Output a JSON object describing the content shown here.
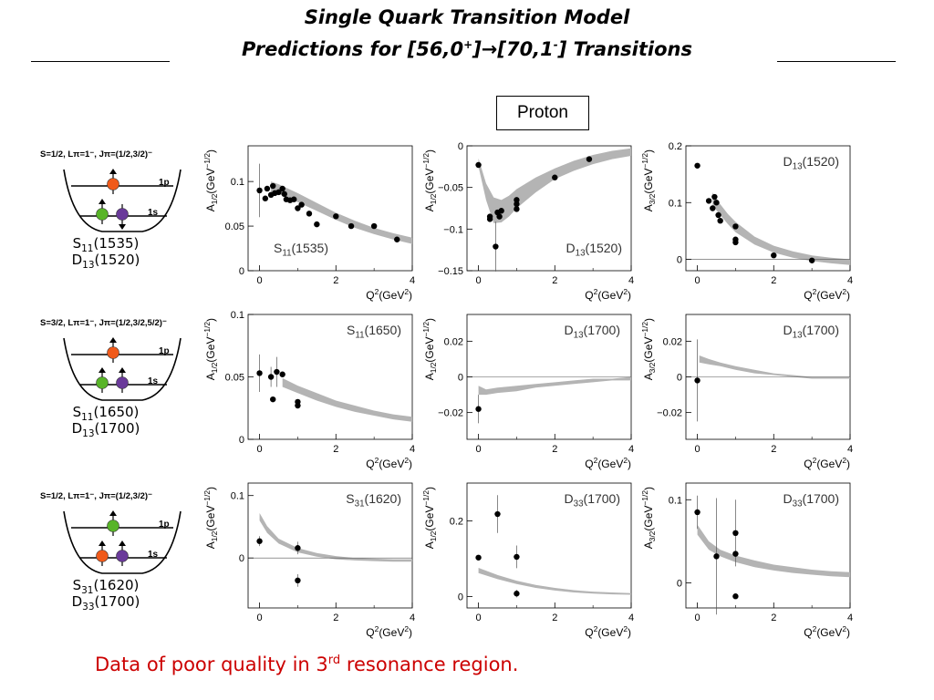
{
  "title": {
    "line1": "Single Quark Transition Model",
    "line2_pre": "Predictions for [56,0",
    "line2_sup1": "+",
    "line2_mid": "]→[70,1",
    "line2_sup2": "-",
    "line2_post": "] Transitions"
  },
  "proton_label": "Proton",
  "footnote": {
    "pre": "Data of poor quality in 3",
    "sup": "rd",
    "post": " resonance region."
  },
  "colors": {
    "band": "#b4b4b4",
    "footnote": "#cc0000",
    "quark_orange": "#f05a1a",
    "quark_green": "#58b428",
    "quark_purple": "#6a3a9a",
    "arrow": "#000000"
  },
  "diagrams": [
    {
      "header": "S=1/2, Lπ=1⁻, Jπ=(1/2,3/2)⁻",
      "level_top": "1p",
      "level_bottom": "1s",
      "states": [
        "S11(1535)",
        "D13(1520)"
      ],
      "top_quarks": [
        {
          "color": "orange",
          "spin": "up"
        }
      ],
      "bottom_quarks": [
        {
          "color": "green",
          "spin": "up"
        },
        {
          "color": "purple",
          "spin": "down"
        }
      ]
    },
    {
      "header": "S=3/2, Lπ=1⁻, Jπ=(1/2,3/2,5/2)⁻",
      "level_top": "1p",
      "level_bottom": "1s",
      "states": [
        "S11(1650)",
        "D13(1700)"
      ],
      "top_quarks": [
        {
          "color": "orange",
          "spin": "up"
        }
      ],
      "bottom_quarks": [
        {
          "color": "green",
          "spin": "up"
        },
        {
          "color": "purple",
          "spin": "up"
        }
      ]
    },
    {
      "header": "S=1/2, Lπ=1⁻, Jπ=(1/2,3/2)⁻",
      "level_top": "1p",
      "level_bottom": "1s",
      "states": [
        "S31(1620)",
        "D33(1700)"
      ],
      "top_quarks": [
        {
          "color": "green",
          "spin": "up"
        }
      ],
      "bottom_quarks": [
        {
          "color": "orange",
          "spin": "up"
        },
        {
          "color": "purple",
          "spin": "up"
        }
      ]
    }
  ],
  "chart_data": [
    {
      "type": "scatter",
      "row": 0,
      "col": 0,
      "ylabel": "A1/2(GeV-1/2)",
      "xlabel": "Q2(GeV2)",
      "resonance": "S11(1535)",
      "label_pos": "bottom-left",
      "xlim": [
        -0.3,
        4
      ],
      "ylim": [
        0,
        0.14
      ],
      "xticks": [
        0,
        2,
        4
      ],
      "yticks": [
        0,
        0.05,
        0.1
      ],
      "ytick_labels": [
        "0",
        "0.05",
        "0.1"
      ],
      "zero_line": false,
      "band": {
        "x": [
          0.3,
          0.5,
          1.0,
          1.5,
          2.0,
          2.5,
          3.0,
          3.5,
          4.0
        ],
        "lo": [
          0.088,
          0.086,
          0.077,
          0.067,
          0.057,
          0.048,
          0.041,
          0.035,
          0.03
        ],
        "hi": [
          0.1,
          0.097,
          0.087,
          0.076,
          0.065,
          0.056,
          0.048,
          0.042,
          0.037
        ]
      },
      "points": [
        {
          "x": 0.0,
          "y": 0.09,
          "err": 0.03
        },
        {
          "x": 0.15,
          "y": 0.081
        },
        {
          "x": 0.2,
          "y": 0.092
        },
        {
          "x": 0.3,
          "y": 0.085
        },
        {
          "x": 0.35,
          "y": 0.095
        },
        {
          "x": 0.4,
          "y": 0.087
        },
        {
          "x": 0.5,
          "y": 0.088
        },
        {
          "x": 0.6,
          "y": 0.092
        },
        {
          "x": 0.65,
          "y": 0.086
        },
        {
          "x": 0.7,
          "y": 0.08
        },
        {
          "x": 0.8,
          "y": 0.079
        },
        {
          "x": 0.9,
          "y": 0.08
        },
        {
          "x": 1.0,
          "y": 0.07
        },
        {
          "x": 1.1,
          "y": 0.074
        },
        {
          "x": 1.3,
          "y": 0.064
        },
        {
          "x": 1.5,
          "y": 0.052
        },
        {
          "x": 2.0,
          "y": 0.061
        },
        {
          "x": 2.4,
          "y": 0.05
        },
        {
          "x": 3.0,
          "y": 0.05
        },
        {
          "x": 3.6,
          "y": 0.035
        }
      ]
    },
    {
      "type": "scatter",
      "row": 0,
      "col": 1,
      "ylabel": "A1/2(GeV-1/2)",
      "xlabel": "Q2(GeV2)",
      "resonance": "D13(1520)",
      "label_pos": "bottom-right",
      "xlim": [
        -0.3,
        4
      ],
      "ylim": [
        -0.15,
        0
      ],
      "xticks": [
        0,
        2,
        4
      ],
      "yticks": [
        -0.15,
        -0.1,
        -0.05,
        0
      ],
      "ytick_labels": [
        "-0.15",
        "-0.1",
        "-0.05",
        "0"
      ],
      "zero_line": false,
      "band": {
        "x": [
          0.0,
          0.2,
          0.4,
          0.6,
          0.8,
          1.0,
          1.5,
          2.0,
          2.5,
          3.0,
          3.5,
          4.0
        ],
        "lo": [
          -0.025,
          -0.065,
          -0.093,
          -0.092,
          -0.085,
          -0.075,
          -0.056,
          -0.04,
          -0.03,
          -0.022,
          -0.016,
          -0.012
        ],
        "hi": [
          -0.015,
          -0.045,
          -0.062,
          -0.065,
          -0.06,
          -0.052,
          -0.038,
          -0.027,
          -0.018,
          -0.011,
          -0.006,
          -0.003
        ]
      },
      "points": [
        {
          "x": 0.0,
          "y": -0.023
        },
        {
          "x": 0.3,
          "y": -0.088
        },
        {
          "x": 0.3,
          "y": -0.085
        },
        {
          "x": 0.45,
          "y": -0.121,
          "err": 0.03
        },
        {
          "x": 0.5,
          "y": -0.08
        },
        {
          "x": 0.55,
          "y": -0.085
        },
        {
          "x": 0.6,
          "y": -0.078
        },
        {
          "x": 1.0,
          "y": -0.065
        },
        {
          "x": 1.0,
          "y": -0.07
        },
        {
          "x": 1.0,
          "y": -0.076
        },
        {
          "x": 2.0,
          "y": -0.038
        },
        {
          "x": 2.9,
          "y": -0.016
        }
      ]
    },
    {
      "type": "scatter",
      "row": 0,
      "col": 2,
      "ylabel": "A3/2(GeV-1/2)",
      "xlabel": "Q2(GeV2)",
      "resonance": "D13(1520)",
      "label_pos": "top-right",
      "xlim": [
        -0.3,
        4
      ],
      "ylim": [
        -0.02,
        0.2
      ],
      "xticks": [
        0,
        2,
        4
      ],
      "yticks": [
        0,
        0.1,
        0.2
      ],
      "ytick_labels": [
        "0",
        "0.1",
        "0.2"
      ],
      "zero_line": true,
      "band": {
        "x": [
          0.4,
          0.6,
          0.8,
          1.0,
          1.5,
          2.0,
          2.5,
          3.0,
          3.5,
          4.0
        ],
        "lo": [
          0.095,
          0.078,
          0.062,
          0.048,
          0.026,
          0.012,
          0.003,
          -0.003,
          -0.007,
          -0.01
        ],
        "hi": [
          0.118,
          0.097,
          0.08,
          0.066,
          0.04,
          0.024,
          0.014,
          0.007,
          0.003,
          0.0
        ]
      },
      "points": [
        {
          "x": 0.0,
          "y": 0.165
        },
        {
          "x": 0.3,
          "y": 0.103
        },
        {
          "x": 0.4,
          "y": 0.09
        },
        {
          "x": 0.45,
          "y": 0.11
        },
        {
          "x": 0.5,
          "y": 0.1
        },
        {
          "x": 0.55,
          "y": 0.078
        },
        {
          "x": 0.6,
          "y": 0.068
        },
        {
          "x": 1.0,
          "y": 0.058
        },
        {
          "x": 1.0,
          "y": 0.035
        },
        {
          "x": 1.0,
          "y": 0.03
        },
        {
          "x": 2.0,
          "y": 0.007
        },
        {
          "x": 3.0,
          "y": -0.002
        }
      ]
    },
    {
      "type": "scatter",
      "row": 1,
      "col": 0,
      "ylabel": "A1/2(GeV-1/2)",
      "xlabel": "Q2(GeV2)",
      "resonance": "S11(1650)",
      "label_pos": "top-right",
      "xlim": [
        -0.3,
        4
      ],
      "ylim": [
        0,
        0.1
      ],
      "xticks": [
        0,
        2,
        4
      ],
      "yticks": [
        0,
        0.05,
        0.1
      ],
      "ytick_labels": [
        "0",
        "0.05",
        "0.1"
      ],
      "zero_line": false,
      "band": {
        "x": [
          0.6,
          1.0,
          1.5,
          2.0,
          2.5,
          3.0,
          3.5,
          4.0
        ],
        "lo": [
          0.042,
          0.037,
          0.031,
          0.026,
          0.022,
          0.019,
          0.016,
          0.014
        ],
        "hi": [
          0.049,
          0.043,
          0.037,
          0.031,
          0.027,
          0.023,
          0.02,
          0.018
        ]
      },
      "points": [
        {
          "x": 0.0,
          "y": 0.053,
          "err": 0.015
        },
        {
          "x": 0.3,
          "y": 0.05,
          "err": 0.008
        },
        {
          "x": 0.35,
          "y": 0.032
        },
        {
          "x": 0.45,
          "y": 0.054,
          "err": 0.012
        },
        {
          "x": 0.6,
          "y": 0.052
        },
        {
          "x": 1.0,
          "y": 0.03
        },
        {
          "x": 1.0,
          "y": 0.027
        }
      ]
    },
    {
      "type": "scatter",
      "row": 1,
      "col": 1,
      "ylabel": "A1/2(GeV-1/2)",
      "xlabel": "Q2(GeV2)",
      "resonance": "D13(1700)",
      "label_pos": "top-right",
      "xlim": [
        -0.3,
        4
      ],
      "ylim": [
        -0.035,
        0.035
      ],
      "xticks": [
        0,
        2,
        4
      ],
      "yticks": [
        -0.02,
        0,
        0.02
      ],
      "ytick_labels": [
        "-0.02",
        "0",
        "0.02"
      ],
      "zero_line": true,
      "band": {
        "x": [
          0.0,
          0.2,
          0.5,
          1.0,
          1.5,
          2.0,
          2.5,
          3.0,
          3.5,
          4.0
        ],
        "lo": [
          -0.01,
          -0.01,
          -0.009,
          -0.008,
          -0.006,
          -0.005,
          -0.004,
          -0.003,
          -0.002,
          -0.002
        ],
        "hi": [
          -0.005,
          -0.007,
          -0.006,
          -0.005,
          -0.004,
          -0.003,
          -0.002,
          -0.001,
          -0.001,
          0.0
        ]
      },
      "points": [
        {
          "x": 0.0,
          "y": -0.018,
          "err": 0.008
        }
      ]
    },
    {
      "type": "scatter",
      "row": 1,
      "col": 2,
      "ylabel": "A3/2(GeV-1/2)",
      "xlabel": "Q2(GeV2)",
      "resonance": "D13(1700)",
      "label_pos": "top-right",
      "xlim": [
        -0.3,
        4
      ],
      "ylim": [
        -0.035,
        0.035
      ],
      "xticks": [
        0,
        2,
        4
      ],
      "yticks": [
        -0.02,
        0,
        0.02
      ],
      "ytick_labels": [
        "-0.02",
        "0",
        "0.02"
      ],
      "zero_line": true,
      "band": {
        "x": [
          0.05,
          0.3,
          0.6,
          1.0,
          1.5,
          2.0,
          2.5,
          3.0,
          3.5,
          4.0
        ],
        "lo": [
          0.008,
          0.007,
          0.006,
          0.004,
          0.002,
          0.001,
          0.0,
          -0.001,
          -0.001,
          -0.001
        ],
        "hi": [
          0.012,
          0.01,
          0.008,
          0.006,
          0.004,
          0.002,
          0.001,
          0.0,
          0.0,
          0.0
        ]
      },
      "points": [
        {
          "x": 0.0,
          "y": -0.002,
          "err": 0.023
        }
      ]
    },
    {
      "type": "scatter",
      "row": 2,
      "col": 0,
      "ylabel": "A1/2(GeV-1/2)",
      "xlabel": "Q2(GeV2)",
      "resonance": "S31(1620)",
      "label_pos": "top-right",
      "xlim": [
        -0.3,
        4
      ],
      "ylim": [
        -0.08,
        0.12
      ],
      "xticks": [
        0,
        2,
        4
      ],
      "yticks": [
        0,
        0.1
      ],
      "ytick_labels": [
        "0",
        "0.1"
      ],
      "zero_line": true,
      "band": {
        "x": [
          0.0,
          0.2,
          0.5,
          1.0,
          1.5,
          2.0,
          2.5,
          3.0,
          3.5,
          4.0
        ],
        "lo": [
          0.06,
          0.04,
          0.023,
          0.009,
          0.002,
          -0.002,
          -0.004,
          -0.005,
          -0.006,
          -0.006
        ],
        "hi": [
          0.072,
          0.051,
          0.031,
          0.016,
          0.008,
          0.003,
          0.0,
          -0.001,
          -0.002,
          -0.002
        ]
      },
      "points": [
        {
          "x": 0.0,
          "y": 0.027,
          "err": 0.008
        },
        {
          "x": 1.0,
          "y": 0.016,
          "err": 0.01
        },
        {
          "x": 1.0,
          "y": -0.036,
          "err": 0.01
        }
      ]
    },
    {
      "type": "scatter",
      "row": 2,
      "col": 1,
      "ylabel": "A1/2(GeV-1/2)",
      "xlabel": "Q2(GeV2)",
      "resonance": "D33(1700)",
      "label_pos": "top-right",
      "xlim": [
        -0.3,
        4
      ],
      "ylim": [
        -0.03,
        0.3
      ],
      "xticks": [
        0,
        2,
        4
      ],
      "yticks": [
        0,
        0.2
      ],
      "ytick_labels": [
        "0",
        "0.2"
      ],
      "zero_line": false,
      "band": {
        "x": [
          0.0,
          0.5,
          1.0,
          1.5,
          2.0,
          2.5,
          3.0,
          3.5,
          4.0
        ],
        "lo": [
          0.062,
          0.046,
          0.033,
          0.023,
          0.016,
          0.011,
          0.008,
          0.006,
          0.005
        ],
        "hi": [
          0.076,
          0.057,
          0.042,
          0.031,
          0.023,
          0.017,
          0.013,
          0.011,
          0.009
        ]
      },
      "points": [
        {
          "x": 0.0,
          "y": 0.103
        },
        {
          "x": 0.5,
          "y": 0.218,
          "err": 0.05
        },
        {
          "x": 1.0,
          "y": 0.105,
          "err": 0.03
        },
        {
          "x": 1.0,
          "y": 0.008,
          "err": 0.01
        }
      ]
    },
    {
      "type": "scatter",
      "row": 2,
      "col": 2,
      "ylabel": "A3/2(GeV-1/2)",
      "xlabel": "Q2(GeV2)",
      "resonance": "D33(1700)",
      "label_pos": "top-right",
      "xlim": [
        -0.3,
        4
      ],
      "ylim": [
        -0.03,
        0.12
      ],
      "xticks": [
        0,
        2,
        4
      ],
      "yticks": [
        0,
        0.1
      ],
      "ytick_labels": [
        "0",
        "0.1"
      ],
      "zero_line": false,
      "band": {
        "x": [
          0.0,
          0.3,
          0.6,
          1.0,
          1.5,
          2.0,
          2.5,
          3.0,
          3.5,
          4.0
        ],
        "lo": [
          0.058,
          0.04,
          0.032,
          0.025,
          0.019,
          0.015,
          0.012,
          0.01,
          0.008,
          0.007
        ],
        "hi": [
          0.07,
          0.05,
          0.04,
          0.033,
          0.027,
          0.022,
          0.019,
          0.016,
          0.014,
          0.013
        ]
      },
      "points": [
        {
          "x": 0.0,
          "y": 0.085,
          "err": 0.02
        },
        {
          "x": 0.5,
          "y": 0.032,
          "err": 0.07
        },
        {
          "x": 1.0,
          "y": 0.06,
          "err": 0.04
        },
        {
          "x": 1.0,
          "y": 0.035
        },
        {
          "x": 1.0,
          "y": -0.016
        }
      ]
    }
  ]
}
